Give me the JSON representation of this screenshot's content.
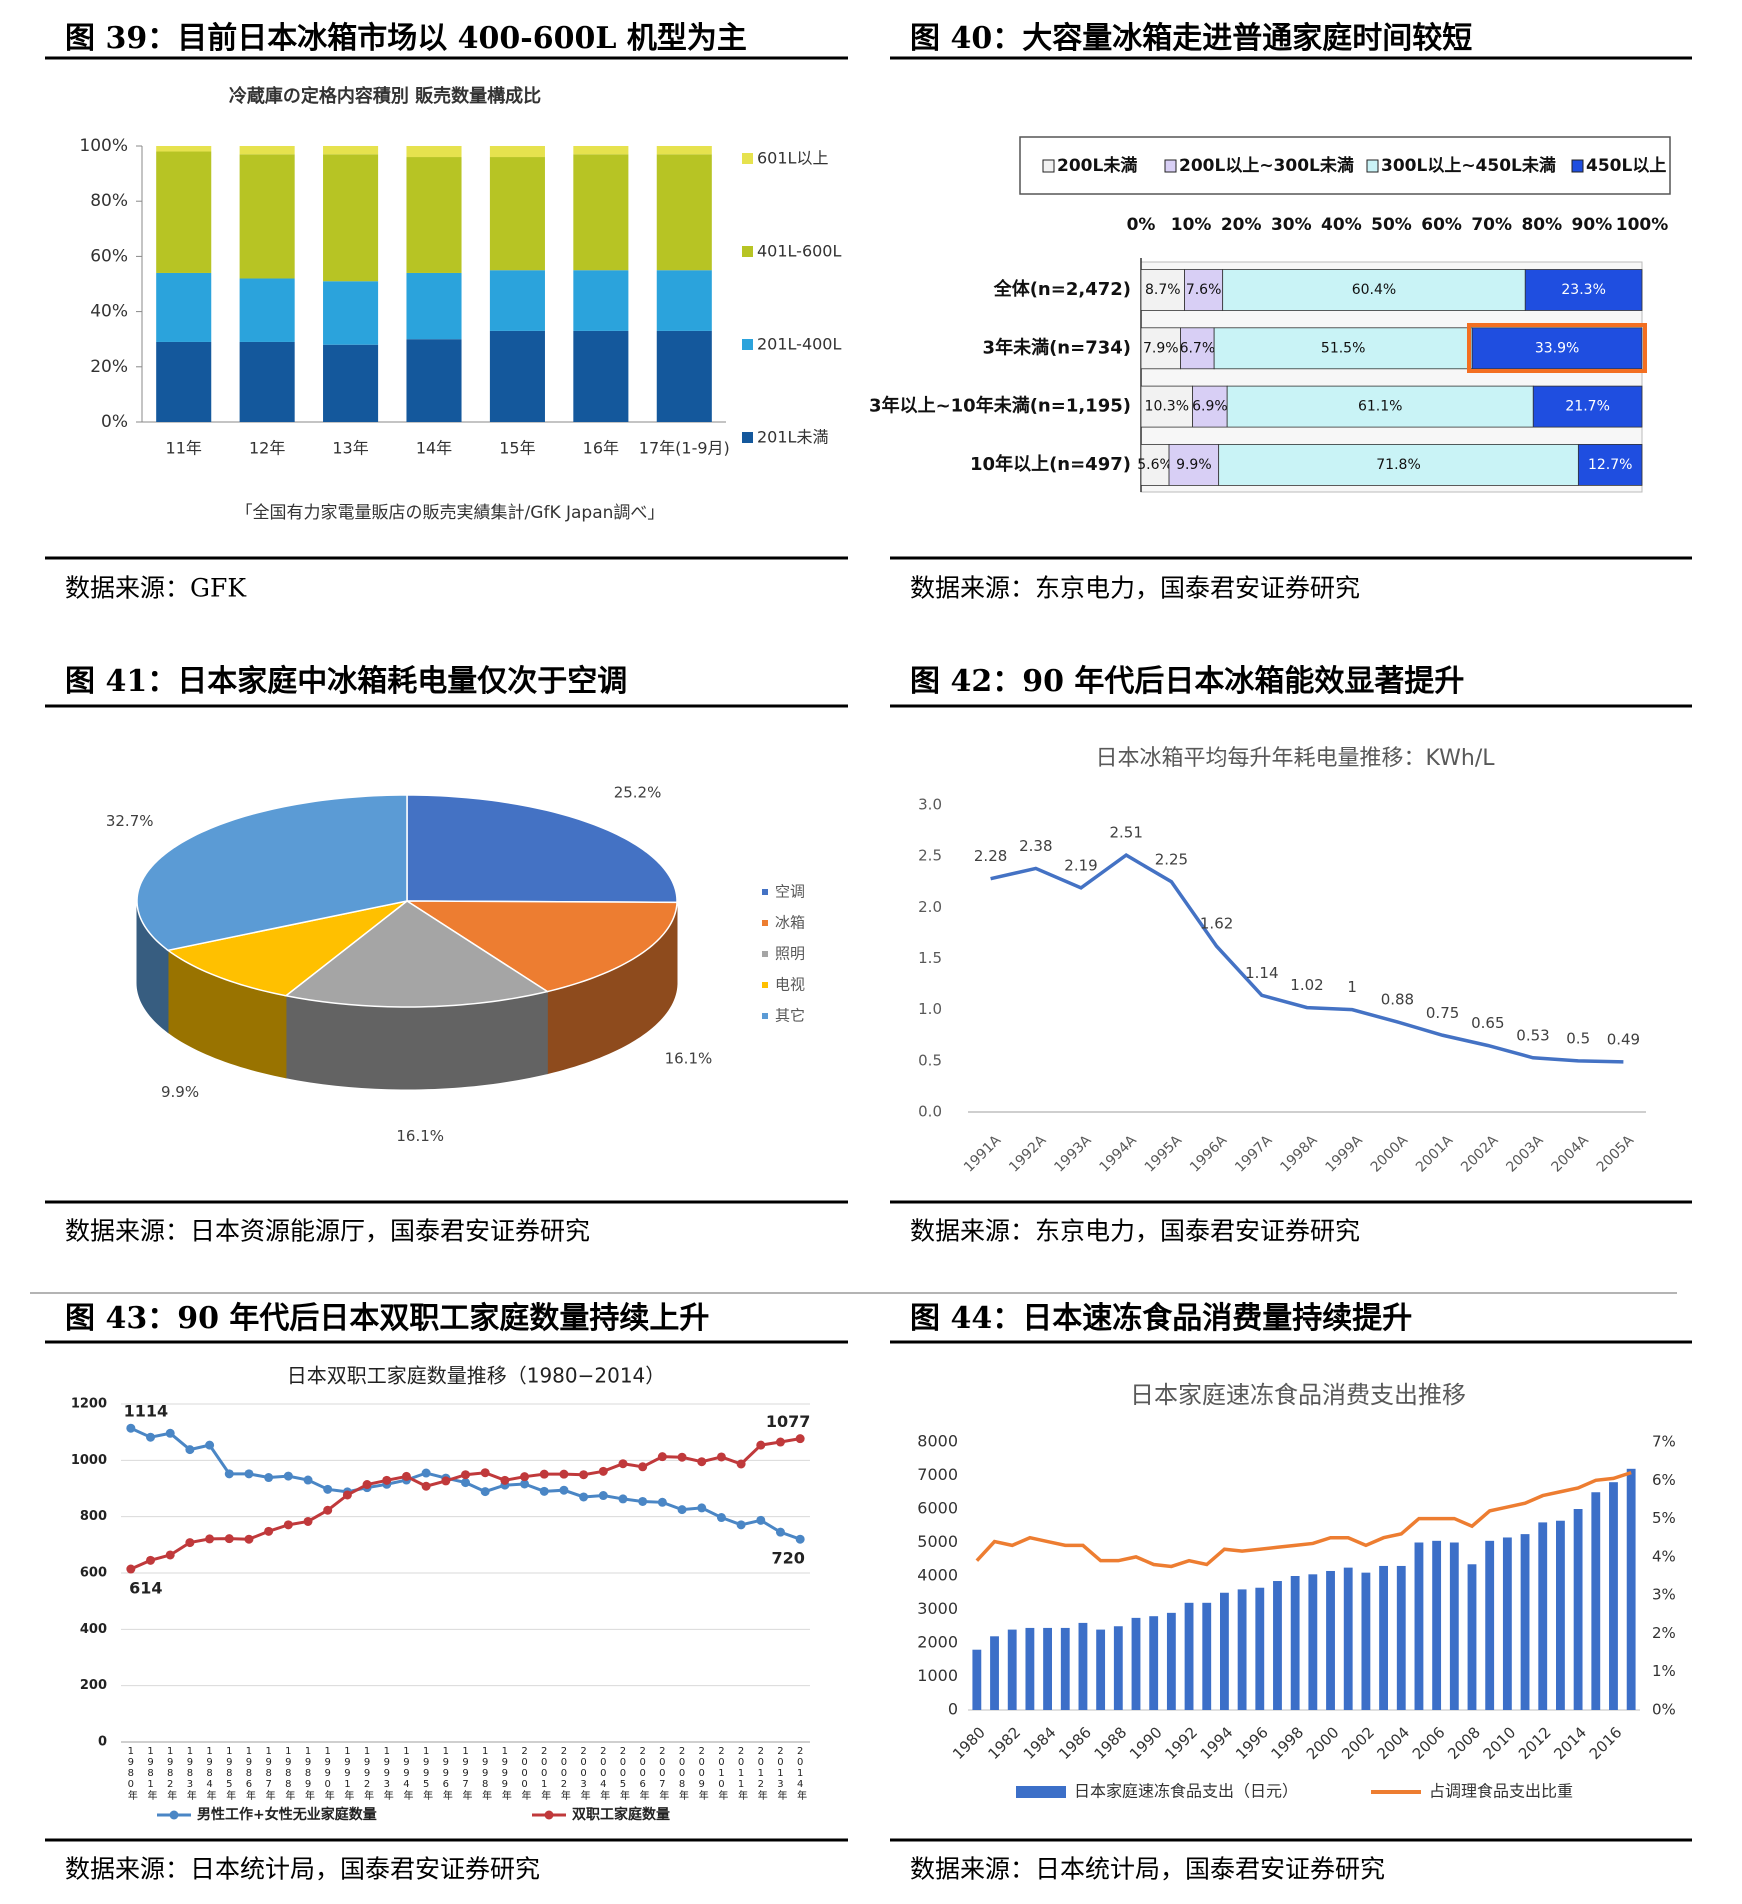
{
  "figures": [
    {
      "caption": "图 39：目前日本冰箱市场以 400-600L 机型为主",
      "source": "数据来源：GFK"
    },
    {
      "caption": "图 40：大容量冰箱走进普通家庭时间较短",
      "source": "数据来源：东京电力，国泰君安证券研究"
    },
    {
      "caption": "图 41：日本家庭中冰箱耗电量仅次于空调",
      "source": "数据来源：日本资源能源厅，国泰君安证券研究"
    },
    {
      "caption": "图 42：90 年代后日本冰箱能效显著提升",
      "source": "数据来源：东京电力，国泰君安证券研究"
    },
    {
      "caption": "图 43：90 年代后日本双职工家庭数量持续上升",
      "source": "数据来源：日本统计局，国泰君安证券研究"
    },
    {
      "caption": "图 44：日本速冻食品消费量持续提升",
      "source": "数据来源：日本统计局，国泰君安证券研究"
    }
  ],
  "chart_data": [
    {
      "type": "bar",
      "stacked": true,
      "title": "冷蔵庫の定格内容積別 販売数量構成比",
      "note": "「全国有力家電量販店の販売実績集計/GfK Japan調べ」",
      "categories": [
        "11年",
        "12年",
        "13年",
        "14年",
        "15年",
        "16年",
        "17年(1-9月)"
      ],
      "series": [
        {
          "name": "201L未満",
          "color": "#14589c",
          "values": [
            29,
            29,
            28,
            30,
            33,
            33,
            33
          ]
        },
        {
          "name": "201L-400L",
          "color": "#2ba3dc",
          "values": [
            25,
            23,
            23,
            24,
            22,
            22,
            22
          ]
        },
        {
          "name": "401L-600L",
          "color": "#b7c424",
          "values": [
            44,
            45,
            46,
            42,
            41,
            42,
            42
          ]
        },
        {
          "name": "601L以上",
          "color": "#e6e24e",
          "values": [
            2,
            3,
            3,
            4,
            4,
            3,
            3
          ]
        }
      ],
      "ylim": [
        0,
        100
      ],
      "yticks": [
        {
          "value": 0,
          "label": "0%"
        },
        {
          "value": 20,
          "label": "20%"
        },
        {
          "value": 40,
          "label": "40%"
        },
        {
          "value": 60,
          "label": "60%"
        },
        {
          "value": 80,
          "label": "80%"
        },
        {
          "value": 100,
          "label": "100%"
        }
      ]
    },
    {
      "type": "hbar",
      "stacked": true,
      "categories": [
        "全体(n=2,472)",
        "3年未満(n=734)",
        "3年以上~10年未満(n=1,195)",
        "10年以上(n=497)"
      ],
      "series": [
        {
          "name": "200L未満",
          "color": "#f2f2f2",
          "values": [
            8.7,
            7.9,
            10.3,
            5.6
          ],
          "value_labels": [
            "8.7%",
            "7.9%",
            "10.3%",
            "5.6%"
          ]
        },
        {
          "name": "200L以上~300L未満",
          "color": "#d8cff5",
          "values": [
            7.6,
            6.7,
            6.9,
            9.9
          ],
          "value_labels": [
            "7.6%",
            "6.7%",
            "6.9%",
            "9.9%"
          ]
        },
        {
          "name": "300L以上~450L未満",
          "color": "#c9f3f6",
          "values": [
            60.4,
            51.5,
            61.1,
            71.8
          ],
          "value_labels": [
            "60.4%",
            "51.5%",
            "61.1%",
            "71.8%"
          ]
        },
        {
          "name": "450L以上",
          "color": "#1f4ee0",
          "values": [
            23.3,
            33.9,
            21.7,
            12.7
          ],
          "value_labels": [
            "23.3%",
            "33.9%",
            "21.7%",
            "12.7%"
          ]
        }
      ],
      "xlim": [
        0,
        100
      ],
      "xticks": [
        {
          "value": 0,
          "label": "0%"
        },
        {
          "value": 10,
          "label": "10%"
        },
        {
          "value": 20,
          "label": "20%"
        },
        {
          "value": 30,
          "label": "30%"
        },
        {
          "value": 40,
          "label": "40%"
        },
        {
          "value": 50,
          "label": "50%"
        },
        {
          "value": 60,
          "label": "60%"
        },
        {
          "value": 70,
          "label": "70%"
        },
        {
          "value": 80,
          "label": "80%"
        },
        {
          "value": 90,
          "label": "90%"
        },
        {
          "value": 100,
          "label": "100%"
        }
      ]
    },
    {
      "type": "pie",
      "categories": [
        "空调",
        "冰箱",
        "照明",
        "电视",
        "其它"
      ],
      "values": [
        25.2,
        16.1,
        16.1,
        9.9,
        32.7
      ],
      "value_labels": [
        "25.2%",
        "16.1%",
        "16.1%",
        "9.9%",
        "32.7%"
      ],
      "colors": [
        "#4472c4",
        "#ed7d31",
        "#a5a5a5",
        "#ffc000",
        "#5b9bd5"
      ]
    },
    {
      "type": "line",
      "title": "日本冰箱平均每升年耗电量推移：KWh/L",
      "categories": [
        "1991A",
        "1992A",
        "1993A",
        "1994A",
        "1995A",
        "1996A",
        "1997A",
        "1998A",
        "1999A",
        "2000A",
        "2001A",
        "2002A",
        "2003A",
        "2004A",
        "2005A"
      ],
      "values": [
        2.28,
        2.38,
        2.19,
        2.51,
        2.25,
        1.62,
        1.14,
        1.02,
        1,
        0.88,
        0.75,
        0.65,
        0.53,
        0.5,
        0.49
      ],
      "color": "#4472c4",
      "ylim": [
        0,
        3
      ],
      "yticks": [
        {
          "value": 0,
          "label": "0.0"
        },
        0.5,
        {
          "value": 1,
          "label": "1.0"
        },
        1.5,
        {
          "value": 2,
          "label": "2.0"
        },
        2.5,
        {
          "value": 3,
          "label": "3.0"
        }
      ]
    },
    {
      "type": "line",
      "title": "日本双职工家庭数量推移（1980−2014）",
      "grid": true,
      "categories": [
        "1980年",
        "1981年",
        "1982年",
        "1983年",
        "1984年",
        "1985年",
        "1986年",
        "1987年",
        "1988年",
        "1989年",
        "1990年",
        "1991年",
        "1992年",
        "1993年",
        "1994年",
        "1995年",
        "1996年",
        "1997年",
        "1998年",
        "1999年",
        "2000年",
        "2001年",
        "2002年",
        "2003年",
        "2004年",
        "2005年",
        "2006年",
        "2007年",
        "2008年",
        "2009年",
        "2010年",
        "2011年",
        "2012年",
        "2013年",
        "2014年"
      ],
      "series": [
        {
          "name": "男性工作+女性无业家庭数量",
          "color": "#4a86c5",
          "values": [
            1114,
            1082,
            1096,
            1038,
            1054,
            952,
            952,
            939,
            944,
            930,
            897,
            888,
            903,
            915,
            930,
            955,
            937,
            921,
            889,
            912,
            916,
            890,
            894,
            870,
            875,
            863,
            854,
            851,
            825,
            831,
            797,
            771,
            787,
            745,
            720
          ]
        },
        {
          "name": "双职工家庭数量",
          "color": "#c0393b",
          "values": [
            614,
            645,
            664,
            708,
            721,
            722,
            720,
            748,
            771,
            783,
            823,
            877,
            914,
            929,
            943,
            908,
            927,
            949,
            956,
            929,
            942,
            951,
            951,
            949,
            961,
            988,
            977,
            1013,
            1011,
            995,
            1012,
            987,
            1054,
            1065,
            1077
          ]
        }
      ],
      "ylim": [
        0,
        1200
      ],
      "yticks": [
        0,
        200,
        400,
        600,
        800,
        1000,
        1200
      ]
    },
    {
      "type": "bar_line",
      "title": "日本家庭速冻食品消费支出推移",
      "categories": [
        "1980",
        null,
        "1982",
        null,
        "1984",
        null,
        "1986",
        null,
        "1988",
        null,
        "1990",
        null,
        "1992",
        null,
        "1994",
        null,
        "1996",
        null,
        "1998",
        null,
        "2000",
        null,
        "2002",
        null,
        "2004",
        null,
        "2006",
        null,
        "2008",
        null,
        "2010",
        null,
        "2012",
        null,
        "2014",
        null,
        "2016",
        null
      ],
      "series": [
        {
          "name": "日本家庭速冻食品支出（日元）",
          "type": "bar",
          "color": "#3c6fc8",
          "values": [
            1800,
            2200,
            2400,
            2450,
            2450,
            2450,
            2600,
            2400,
            2500,
            2750,
            2800,
            2900,
            3200,
            3200,
            3500,
            3600,
            3650,
            3850,
            4000,
            4050,
            4150,
            4250,
            4100,
            4300,
            4300,
            5000,
            5050,
            5000,
            4350,
            5050,
            5150,
            5250,
            5600,
            5650,
            6000,
            6500,
            6800,
            7200
          ]
        },
        {
          "name": "占调理食品支出比重",
          "type": "line",
          "axis": "y2",
          "color": "#ed7d31",
          "values": [
            3.9,
            4.4,
            4.3,
            4.5,
            4.4,
            4.3,
            4.3,
            3.9,
            3.9,
            4,
            3.8,
            3.75,
            3.9,
            3.8,
            4.2,
            4.15,
            4.2,
            4.25,
            4.3,
            4.35,
            4.5,
            4.5,
            4.3,
            4.5,
            4.6,
            5,
            5,
            5,
            4.8,
            5.2,
            5.3,
            5.4,
            5.6,
            5.7,
            5.8,
            6,
            6.05,
            6.2
          ]
        }
      ],
      "ylim": [
        0,
        8000
      ],
      "yticks": [
        0,
        1000,
        2000,
        3000,
        4000,
        5000,
        6000,
        7000,
        8000
      ],
      "y2lim": [
        0,
        7
      ],
      "y2ticks": [
        {
          "value": 0,
          "label": "0%"
        },
        {
          "value": 1,
          "label": "1%"
        },
        {
          "value": 2,
          "label": "2%"
        },
        {
          "value": 3,
          "label": "3%"
        },
        {
          "value": 4,
          "label": "4%"
        },
        {
          "value": 5,
          "label": "5%"
        },
        {
          "value": 6,
          "label": "6%"
        },
        {
          "value": 7,
          "label": "7%"
        }
      ]
    }
  ]
}
